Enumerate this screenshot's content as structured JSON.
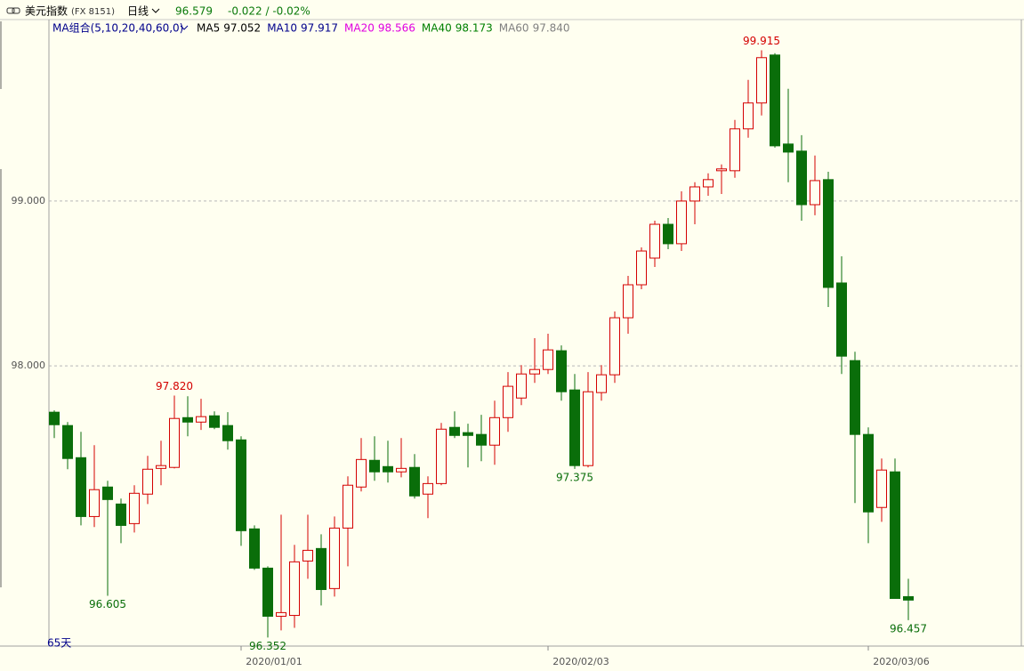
{
  "header": {
    "title": "美元指数",
    "code": "(FX 8151)",
    "period": "日线",
    "price": "96.579",
    "change": "-0.022 / -0.02%",
    "ma_group": "MA组合(5,10,20,40,60,0)",
    "ma": [
      {
        "name": "MA5",
        "value": "97.052",
        "color": "#000000"
      },
      {
        "name": "MA10",
        "value": "97.917",
        "color": "#00008b"
      },
      {
        "name": "MA20",
        "value": "98.566",
        "color": "#e000e0"
      },
      {
        "name": "MA40",
        "value": "98.173",
        "color": "#008000"
      },
      {
        "name": "MA60",
        "value": "97.840",
        "color": "#808080"
      }
    ]
  },
  "chart_data": {
    "type": "candlestick",
    "range_label": "65天",
    "up_color": "#d40000",
    "down_color": "#0a6e0a",
    "grid": true,
    "ylim": [
      96.3,
      100.02
    ],
    "yticks": [
      {
        "value": 99,
        "label": "99.000"
      },
      {
        "value": 98,
        "label": "98.000"
      }
    ],
    "categories": [
      null,
      null,
      null,
      null,
      null,
      null,
      null,
      null,
      null,
      null,
      null,
      null,
      null,
      null,
      null,
      null,
      "2020/01/01",
      null,
      null,
      null,
      null,
      null,
      null,
      null,
      null,
      null,
      null,
      null,
      null,
      null,
      null,
      null,
      null,
      null,
      null,
      null,
      null,
      null,
      null,
      "2020/02/03",
      null,
      null,
      null,
      null,
      null,
      null,
      null,
      null,
      null,
      null,
      null,
      null,
      null,
      null,
      null,
      null,
      null,
      null,
      null,
      null,
      null,
      null,
      null,
      "2020/03/06",
      null
    ],
    "open": [
      97.719,
      97.638,
      97.443,
      97.086,
      97.265,
      97.162,
      97.043,
      97.222,
      97.378,
      97.384,
      97.686,
      97.659,
      97.697,
      97.638,
      97.551,
      97.011,
      96.773,
      96.481,
      96.486,
      96.816,
      96.892,
      96.649,
      97.016,
      97.265,
      97.427,
      97.389,
      97.357,
      97.384,
      97.222,
      97.286,
      97.627,
      97.595,
      97.584,
      97.519,
      97.686,
      97.805,
      97.951,
      97.978,
      98.092,
      97.854,
      97.395,
      97.838,
      97.946,
      98.292,
      98.492,
      98.654,
      98.859,
      98.741,
      99.0,
      99.086,
      99.184,
      99.184,
      99.438,
      99.595,
      99.886,
      99.346,
      99.303,
      98.978,
      99.13,
      98.503,
      98.032,
      97.584,
      97.141,
      97.357,
      96.6
    ],
    "high": [
      97.73,
      97.659,
      97.6,
      97.519,
      97.303,
      97.195,
      97.276,
      97.454,
      97.546,
      97.82,
      97.816,
      97.8,
      97.724,
      97.719,
      97.573,
      97.032,
      96.784,
      97.097,
      96.914,
      97.097,
      96.978,
      97.086,
      97.33,
      97.562,
      97.573,
      97.546,
      97.562,
      97.465,
      97.33,
      97.654,
      97.724,
      97.649,
      97.703,
      97.789,
      97.962,
      98.005,
      98.168,
      98.195,
      98.124,
      97.951,
      97.962,
      98.005,
      98.33,
      98.546,
      98.719,
      98.881,
      98.897,
      99.059,
      99.114,
      99.168,
      99.222,
      99.492,
      99.735,
      99.915,
      99.897,
      99.681,
      99.4,
      99.276,
      99.178,
      98.665,
      98.086,
      97.627,
      97.438,
      97.438,
      96.708
    ],
    "low": [
      97.562,
      97.373,
      97.032,
      97.022,
      96.605,
      96.924,
      96.989,
      97.162,
      97.276,
      97.378,
      97.573,
      97.611,
      97.616,
      97.492,
      96.908,
      96.762,
      96.352,
      96.395,
      96.411,
      96.708,
      96.546,
      96.6,
      96.784,
      97.238,
      97.303,
      97.292,
      97.324,
      97.195,
      97.076,
      97.276,
      97.562,
      97.384,
      97.422,
      97.4,
      97.6,
      97.762,
      97.897,
      97.951,
      97.789,
      97.375,
      97.384,
      97.789,
      97.897,
      98.195,
      98.465,
      98.6,
      98.708,
      98.697,
      98.859,
      99.032,
      99.043,
      99.141,
      99.384,
      99.519,
      99.324,
      99.114,
      98.881,
      98.914,
      98.357,
      97.951,
      97.168,
      96.924,
      97.054,
      96.589,
      96.457
    ],
    "close": [
      97.643,
      97.438,
      97.086,
      97.249,
      97.189,
      97.032,
      97.227,
      97.373,
      97.395,
      97.681,
      97.659,
      97.692,
      97.627,
      97.546,
      97.0,
      96.773,
      96.481,
      96.503,
      96.811,
      96.881,
      96.643,
      97.016,
      97.276,
      97.432,
      97.357,
      97.357,
      97.378,
      97.211,
      97.286,
      97.616,
      97.578,
      97.578,
      97.519,
      97.686,
      97.876,
      97.951,
      97.978,
      98.097,
      97.843,
      97.395,
      97.843,
      97.946,
      98.292,
      98.492,
      98.697,
      98.859,
      98.741,
      99.0,
      99.086,
      99.13,
      99.195,
      99.438,
      99.595,
      99.87,
      99.335,
      99.297,
      98.978,
      99.124,
      98.476,
      98.059,
      97.584,
      97.114,
      97.368,
      96.589,
      96.579
    ],
    "annotations": [
      {
        "value": 97.82,
        "label": "97.820",
        "of": "high"
      },
      {
        "value": 96.605,
        "label": "96.605",
        "of": "low"
      },
      {
        "value": 96.352,
        "label": "96.352",
        "of": "low"
      },
      {
        "value": 97.375,
        "label": "97.375",
        "of": "low"
      },
      {
        "value": 99.915,
        "label": "99.915",
        "of": "high"
      },
      {
        "value": 96.457,
        "label": "96.457",
        "of": "low"
      }
    ]
  }
}
